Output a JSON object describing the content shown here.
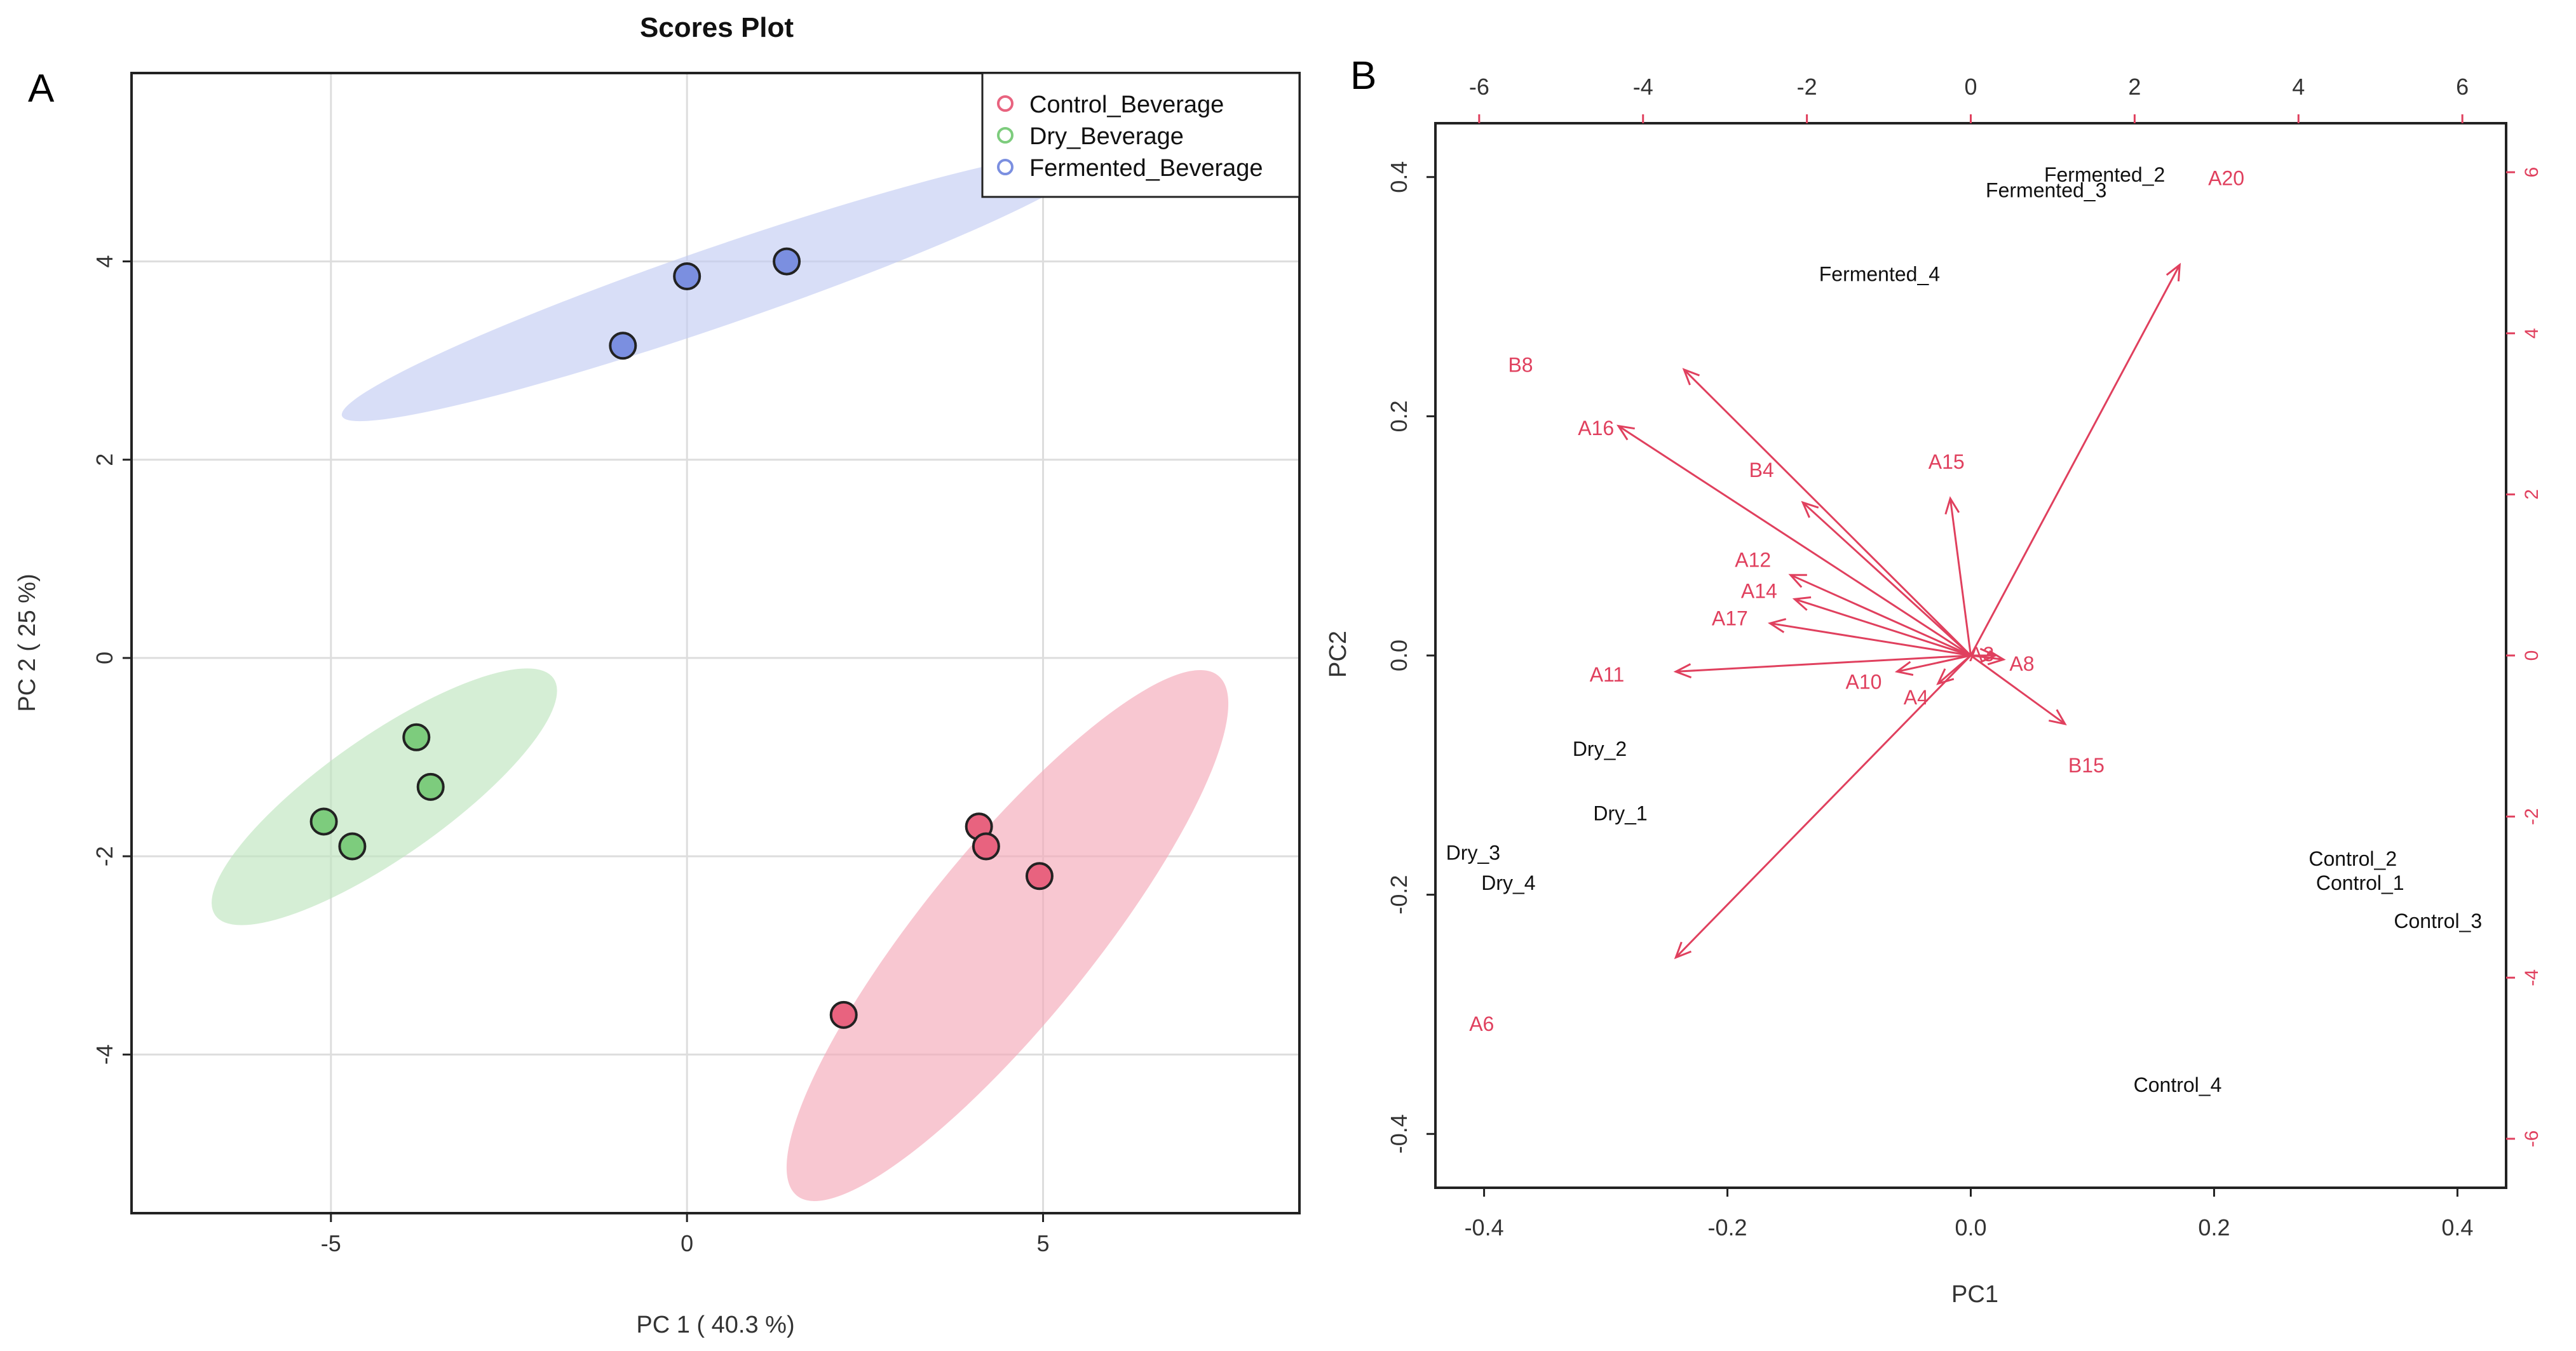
{
  "panels": {
    "a_label": "A",
    "b_label": "B"
  },
  "colors": {
    "control": "#e8637f",
    "dry": "#7dcc7d",
    "fermented": "#7b8fe0",
    "control_ellipse": "#f4a9b8",
    "dry_ellipse": "#bfe5bf",
    "fermented_ellipse": "#c3ccf2",
    "arrow": "#e0405e",
    "grid": "#dddddd"
  },
  "chart_data": [
    {
      "type": "scatter",
      "title": "Scores Plot",
      "xlabel": "PC 1 ( 40.3 %)",
      "ylabel": "PC 2 ( 25 %)",
      "xlim": [
        -7.8,
        8.6
      ],
      "ylim": [
        -5.6,
        5.9
      ],
      "xticks": [
        -5,
        0,
        5
      ],
      "yticks": [
        -4,
        -2,
        0,
        2,
        4
      ],
      "legend": [
        "Control_Beverage",
        "Dry_Beverage",
        "Fermented_Beverage"
      ],
      "series": [
        {
          "name": "Control_Beverage",
          "color_key": "control",
          "points": [
            [
              2.2,
              -3.6
            ],
            [
              4.1,
              -1.7
            ],
            [
              4.2,
              -1.9
            ],
            [
              4.95,
              -2.2
            ]
          ],
          "ellipse": {
            "cx": 4.5,
            "cy": -2.8,
            "rx": 4.7,
            "ry": 1.2,
            "angle_deg": 51
          }
        },
        {
          "name": "Dry_Beverage",
          "color_key": "dry",
          "points": [
            [
              -5.1,
              -1.65
            ],
            [
              -4.7,
              -1.9
            ],
            [
              -3.8,
              -0.8
            ],
            [
              -3.6,
              -1.3
            ]
          ],
          "ellipse": {
            "cx": -4.25,
            "cy": -1.4,
            "rx": 2.9,
            "ry": 0.85,
            "angle_deg": 35
          }
        },
        {
          "name": "Fermented_Beverage",
          "color_key": "fermented",
          "points": [
            [
              -0.9,
              3.15
            ],
            [
              0.0,
              3.85
            ],
            [
              1.4,
              4.0
            ]
          ],
          "ellipse": {
            "cx": 0.45,
            "cy": 3.75,
            "rx": 5.6,
            "ry": 0.55,
            "angle_deg": 19
          }
        }
      ]
    },
    {
      "type": "biplot",
      "xlabel": "PC1",
      "ylabel": "PC2",
      "xlim": [
        -0.44,
        0.44
      ],
      "ylim": [
        -0.445,
        0.445
      ],
      "xticks": [
        -0.4,
        -0.2,
        0.0,
        0.2,
        0.4
      ],
      "yticks": [
        -0.4,
        -0.2,
        0.0,
        0.2,
        0.4
      ],
      "xtick_labels": [
        "-0.4",
        "-0.2",
        "0.0",
        "0.2",
        "0.4"
      ],
      "ytick_labels": [
        "-0.4",
        "-0.2",
        "0.0",
        "0.2",
        "0.4"
      ],
      "top_ticks": [
        -6,
        -4,
        -2,
        0,
        2,
        4,
        6
      ],
      "right_ticks": [
        -6,
        -4,
        -2,
        0,
        2,
        4,
        6
      ],
      "arrow_scale": 14.85,
      "observations": [
        {
          "label": "Fermented_2",
          "x": 0.11,
          "y": 0.402
        },
        {
          "label": "Fermented_3",
          "x": 0.062,
          "y": 0.389
        },
        {
          "label": "Fermented_4",
          "x": -0.075,
          "y": 0.319
        },
        {
          "label": "Dry_2",
          "x": -0.305,
          "y": -0.078
        },
        {
          "label": "Dry_1",
          "x": -0.288,
          "y": -0.132
        },
        {
          "label": "Dry_3",
          "x": -0.409,
          "y": -0.165
        },
        {
          "label": "Dry_4",
          "x": -0.38,
          "y": -0.19
        },
        {
          "label": "Control_2",
          "x": 0.314,
          "y": -0.17
        },
        {
          "label": "Control_1",
          "x": 0.32,
          "y": -0.19
        },
        {
          "label": "Control_3",
          "x": 0.384,
          "y": -0.222
        },
        {
          "label": "Control_4",
          "x": 0.17,
          "y": -0.359
        }
      ],
      "variables": [
        {
          "label": "A20",
          "x": 2.55,
          "y": 4.85,
          "lx": 0.21,
          "ly": 0.399
        },
        {
          "label": "B8",
          "x": -3.5,
          "y": 3.55,
          "lx": -0.37,
          "ly": 0.243
        },
        {
          "label": "A16",
          "x": -4.3,
          "y": 2.85,
          "lx": -0.308,
          "ly": 0.19
        },
        {
          "label": "B4",
          "x": -2.05,
          "y": 1.9,
          "lx": -0.172,
          "ly": 0.155
        },
        {
          "label": "A15",
          "x": -0.25,
          "y": 1.95,
          "lx": -0.02,
          "ly": 0.162
        },
        {
          "label": "A12",
          "x": -2.2,
          "y": 1.0,
          "lx": -0.179,
          "ly": 0.08
        },
        {
          "label": "A14",
          "x": -2.15,
          "y": 0.7,
          "lx": -0.174,
          "ly": 0.054
        },
        {
          "label": "A17",
          "x": -2.45,
          "y": 0.4,
          "lx": -0.198,
          "ly": 0.031
        },
        {
          "label": "A11",
          "x": -3.6,
          "y": -0.2,
          "lx": -0.299,
          "ly": -0.016
        },
        {
          "label": "A10",
          "x": -0.9,
          "y": -0.2,
          "lx": -0.088,
          "ly": -0.022
        },
        {
          "label": "A4",
          "x": -0.4,
          "y": -0.35,
          "lx": -0.045,
          "ly": -0.035
        },
        {
          "label": "A3",
          "x": 0.3,
          "y": 0.0,
          "lx": 0.009,
          "ly": 0.001
        },
        {
          "label": "A8",
          "x": 0.4,
          "y": -0.05,
          "lx": 0.042,
          "ly": -0.007
        },
        {
          "label": "B15",
          "x": 1.15,
          "y": -0.85,
          "lx": 0.095,
          "ly": -0.092
        },
        {
          "label": "A6",
          "x": -3.6,
          "y": -3.75,
          "lx": -0.402,
          "ly": -0.308
        }
      ]
    }
  ]
}
